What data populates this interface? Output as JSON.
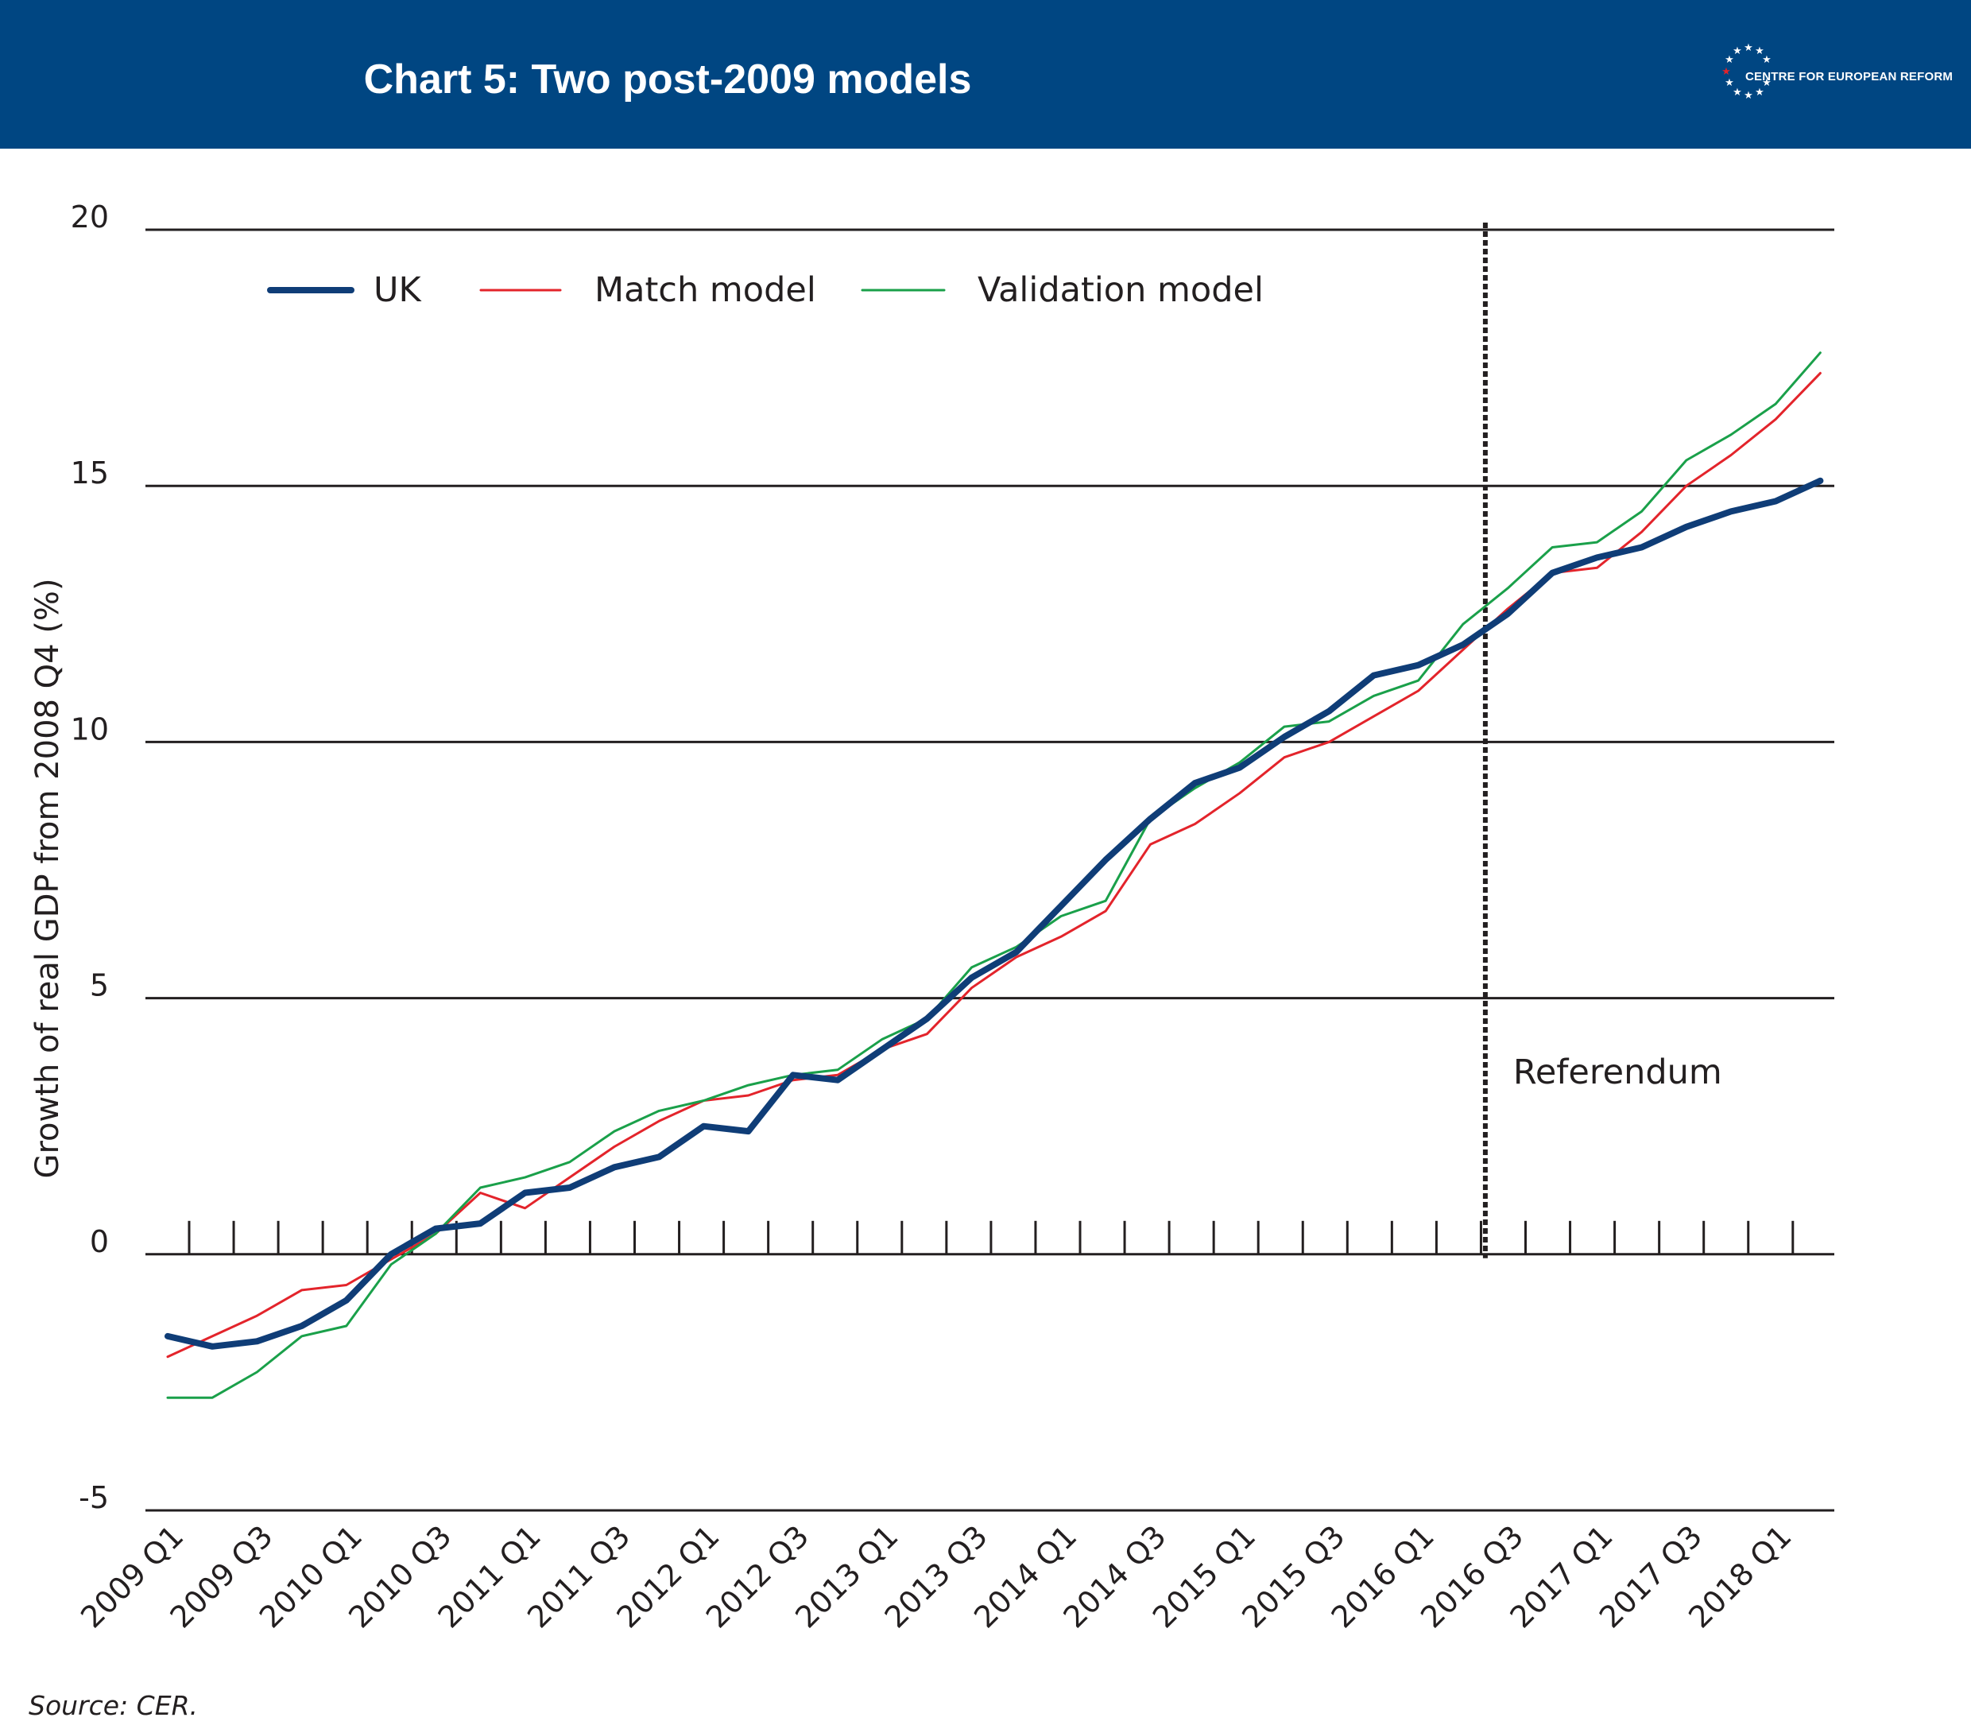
{
  "header": {
    "title": "Chart 5: Two post-2009 models",
    "logo_text": "CENTRE FOR EUROPEAN REFORM"
  },
  "footer": {
    "source": "Source: CER."
  },
  "colors": {
    "header_bg": "#004682",
    "UK": "#0f3d77",
    "Match model": "#e3242b",
    "Validation model": "#1aa04a"
  },
  "chart_data": {
    "type": "line",
    "title": "Chart 5: Two post-2009 models",
    "ylabel": "Growth of real GDP from 2008 Q4 (%)",
    "xlabel": "",
    "ylim": [
      -5,
      20
    ],
    "yticks": [
      -5,
      0,
      5,
      10,
      15,
      20
    ],
    "grid": "horizontal",
    "legend": "top-left",
    "x_tick_labels": [
      "2009 Q1",
      "2009 Q3",
      "2010 Q1",
      "2010 Q3",
      "2011 Q1",
      "2011 Q3",
      "2012 Q1",
      "2012 Q3",
      "2013 Q1",
      "2013 Q3",
      "2014 Q1",
      "2014 Q3",
      "2015 Q1",
      "2015 Q3",
      "2016 Q1",
      "2016 Q3",
      "2017 Q1",
      "2017 Q3",
      "2018 Q1"
    ],
    "x": [
      "2009 Q1",
      "2009 Q2",
      "2009 Q3",
      "2009 Q4",
      "2010 Q1",
      "2010 Q2",
      "2010 Q3",
      "2010 Q4",
      "2011 Q1",
      "2011 Q2",
      "2011 Q3",
      "2011 Q4",
      "2012 Q1",
      "2012 Q2",
      "2012 Q3",
      "2012 Q4",
      "2013 Q1",
      "2013 Q2",
      "2013 Q3",
      "2013 Q4",
      "2014 Q1",
      "2014 Q2",
      "2014 Q3",
      "2014 Q4",
      "2015 Q1",
      "2015 Q2",
      "2015 Q3",
      "2015 Q4",
      "2016 Q1",
      "2016 Q2",
      "2016 Q3",
      "2016 Q4",
      "2017 Q1",
      "2017 Q2",
      "2017 Q3",
      "2017 Q4",
      "2018 Q1",
      "2018 Q2"
    ],
    "series": [
      {
        "name": "UK",
        "values": [
          -1.6,
          -1.8,
          -1.7,
          -1.4,
          -0.9,
          0.0,
          0.5,
          0.6,
          1.2,
          1.3,
          1.7,
          1.9,
          2.5,
          2.4,
          3.5,
          3.4,
          4.0,
          4.6,
          5.4,
          5.9,
          6.8,
          7.7,
          8.5,
          9.2,
          9.5,
          10.1,
          10.6,
          11.3,
          11.5,
          11.9,
          12.5,
          13.3,
          13.6,
          13.8,
          14.2,
          14.5,
          14.7,
          15.1
        ]
      },
      {
        "name": "Match model",
        "values": [
          -2.0,
          -1.6,
          -1.2,
          -0.7,
          -0.6,
          -0.1,
          0.4,
          1.2,
          0.9,
          1.5,
          2.1,
          2.6,
          3.0,
          3.1,
          3.4,
          3.5,
          4.0,
          4.3,
          5.2,
          5.8,
          6.2,
          6.7,
          8.0,
          8.4,
          9.0,
          9.7,
          10.0,
          10.5,
          11.0,
          11.8,
          12.6,
          13.3,
          13.4,
          14.1,
          15.0,
          15.6,
          16.3,
          17.2
        ]
      },
      {
        "name": "Validation model",
        "values": [
          -2.8,
          -2.8,
          -2.3,
          -1.6,
          -1.4,
          -0.2,
          0.4,
          1.3,
          1.5,
          1.8,
          2.4,
          2.8,
          3.0,
          3.3,
          3.5,
          3.6,
          4.2,
          4.6,
          5.6,
          6.0,
          6.6,
          6.9,
          8.5,
          9.1,
          9.6,
          10.3,
          10.4,
          10.9,
          11.2,
          12.3,
          13.0,
          13.8,
          13.9,
          14.5,
          15.5,
          16.0,
          16.6,
          17.6
        ]
      }
    ],
    "annotations": [
      {
        "text": "Referendum",
        "x_between": [
          "2016 Q2",
          "2016 Q3"
        ]
      }
    ]
  }
}
